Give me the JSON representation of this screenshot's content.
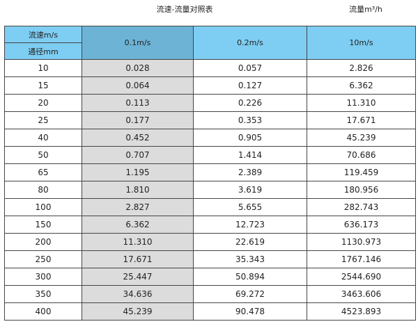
{
  "title": "流速-流量对照表",
  "unit_label": "流量m³/h",
  "header": {
    "velocity_label": "流速m/s",
    "diameter_label": "通径mm",
    "columns": [
      "0.1m/s",
      "0.2m/s",
      "10m/s"
    ]
  },
  "rows": [
    [
      "10",
      "0.028",
      "0.057",
      "2.826"
    ],
    [
      "15",
      "0.064",
      "0.127",
      "6.362"
    ],
    [
      "20",
      "0.113",
      "0.226",
      "11.310"
    ],
    [
      "25",
      "0.177",
      "0.353",
      "17.671"
    ],
    [
      "40",
      "0.452",
      "0.905",
      "45.239"
    ],
    [
      "50",
      "0.707",
      "1.414",
      "70.686"
    ],
    [
      "65",
      "1.195",
      "2.389",
      "119.459"
    ],
    [
      "80",
      "1.810",
      "3.619",
      "180.956"
    ],
    [
      "100",
      "2.827",
      "5.655",
      "282.743"
    ],
    [
      "150",
      "6.362",
      "12.723",
      "636.173"
    ],
    [
      "200",
      "11.310",
      "22.619",
      "1130.973"
    ],
    [
      "250",
      "17.671",
      "35.343",
      "1767.146"
    ],
    [
      "300",
      "25.447",
      "50.894",
      "2544.690"
    ],
    [
      "350",
      "34.636",
      "69.272",
      "3463.606"
    ],
    [
      "400",
      "45.239",
      "90.478",
      "4523.893"
    ]
  ],
  "colors": {
    "header": "#7ecdf2",
    "header_selected": "#6db3d6",
    "highlight_column": "#dcdcdc"
  }
}
